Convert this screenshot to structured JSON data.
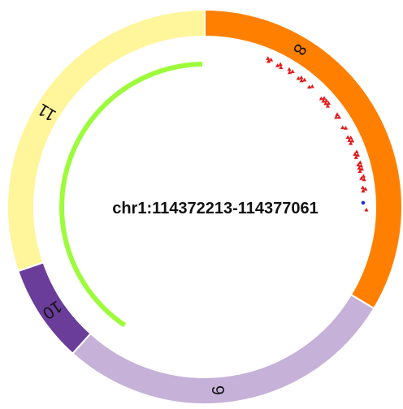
{
  "center_label": "chr1:114372213-114377061",
  "segments": [
    {
      "label": "8",
      "color": "#ff8000"
    },
    {
      "label": "9",
      "color": "#c6b1d8"
    },
    {
      "label": "10",
      "color": "#6a3d9a"
    },
    {
      "label": "11",
      "color": "#fff59a"
    }
  ],
  "inner_arc": {
    "color": "#9dfb3c"
  },
  "markers": {
    "triangle_color": "#e31a1c",
    "dot_color": "#1f2fdc"
  }
}
